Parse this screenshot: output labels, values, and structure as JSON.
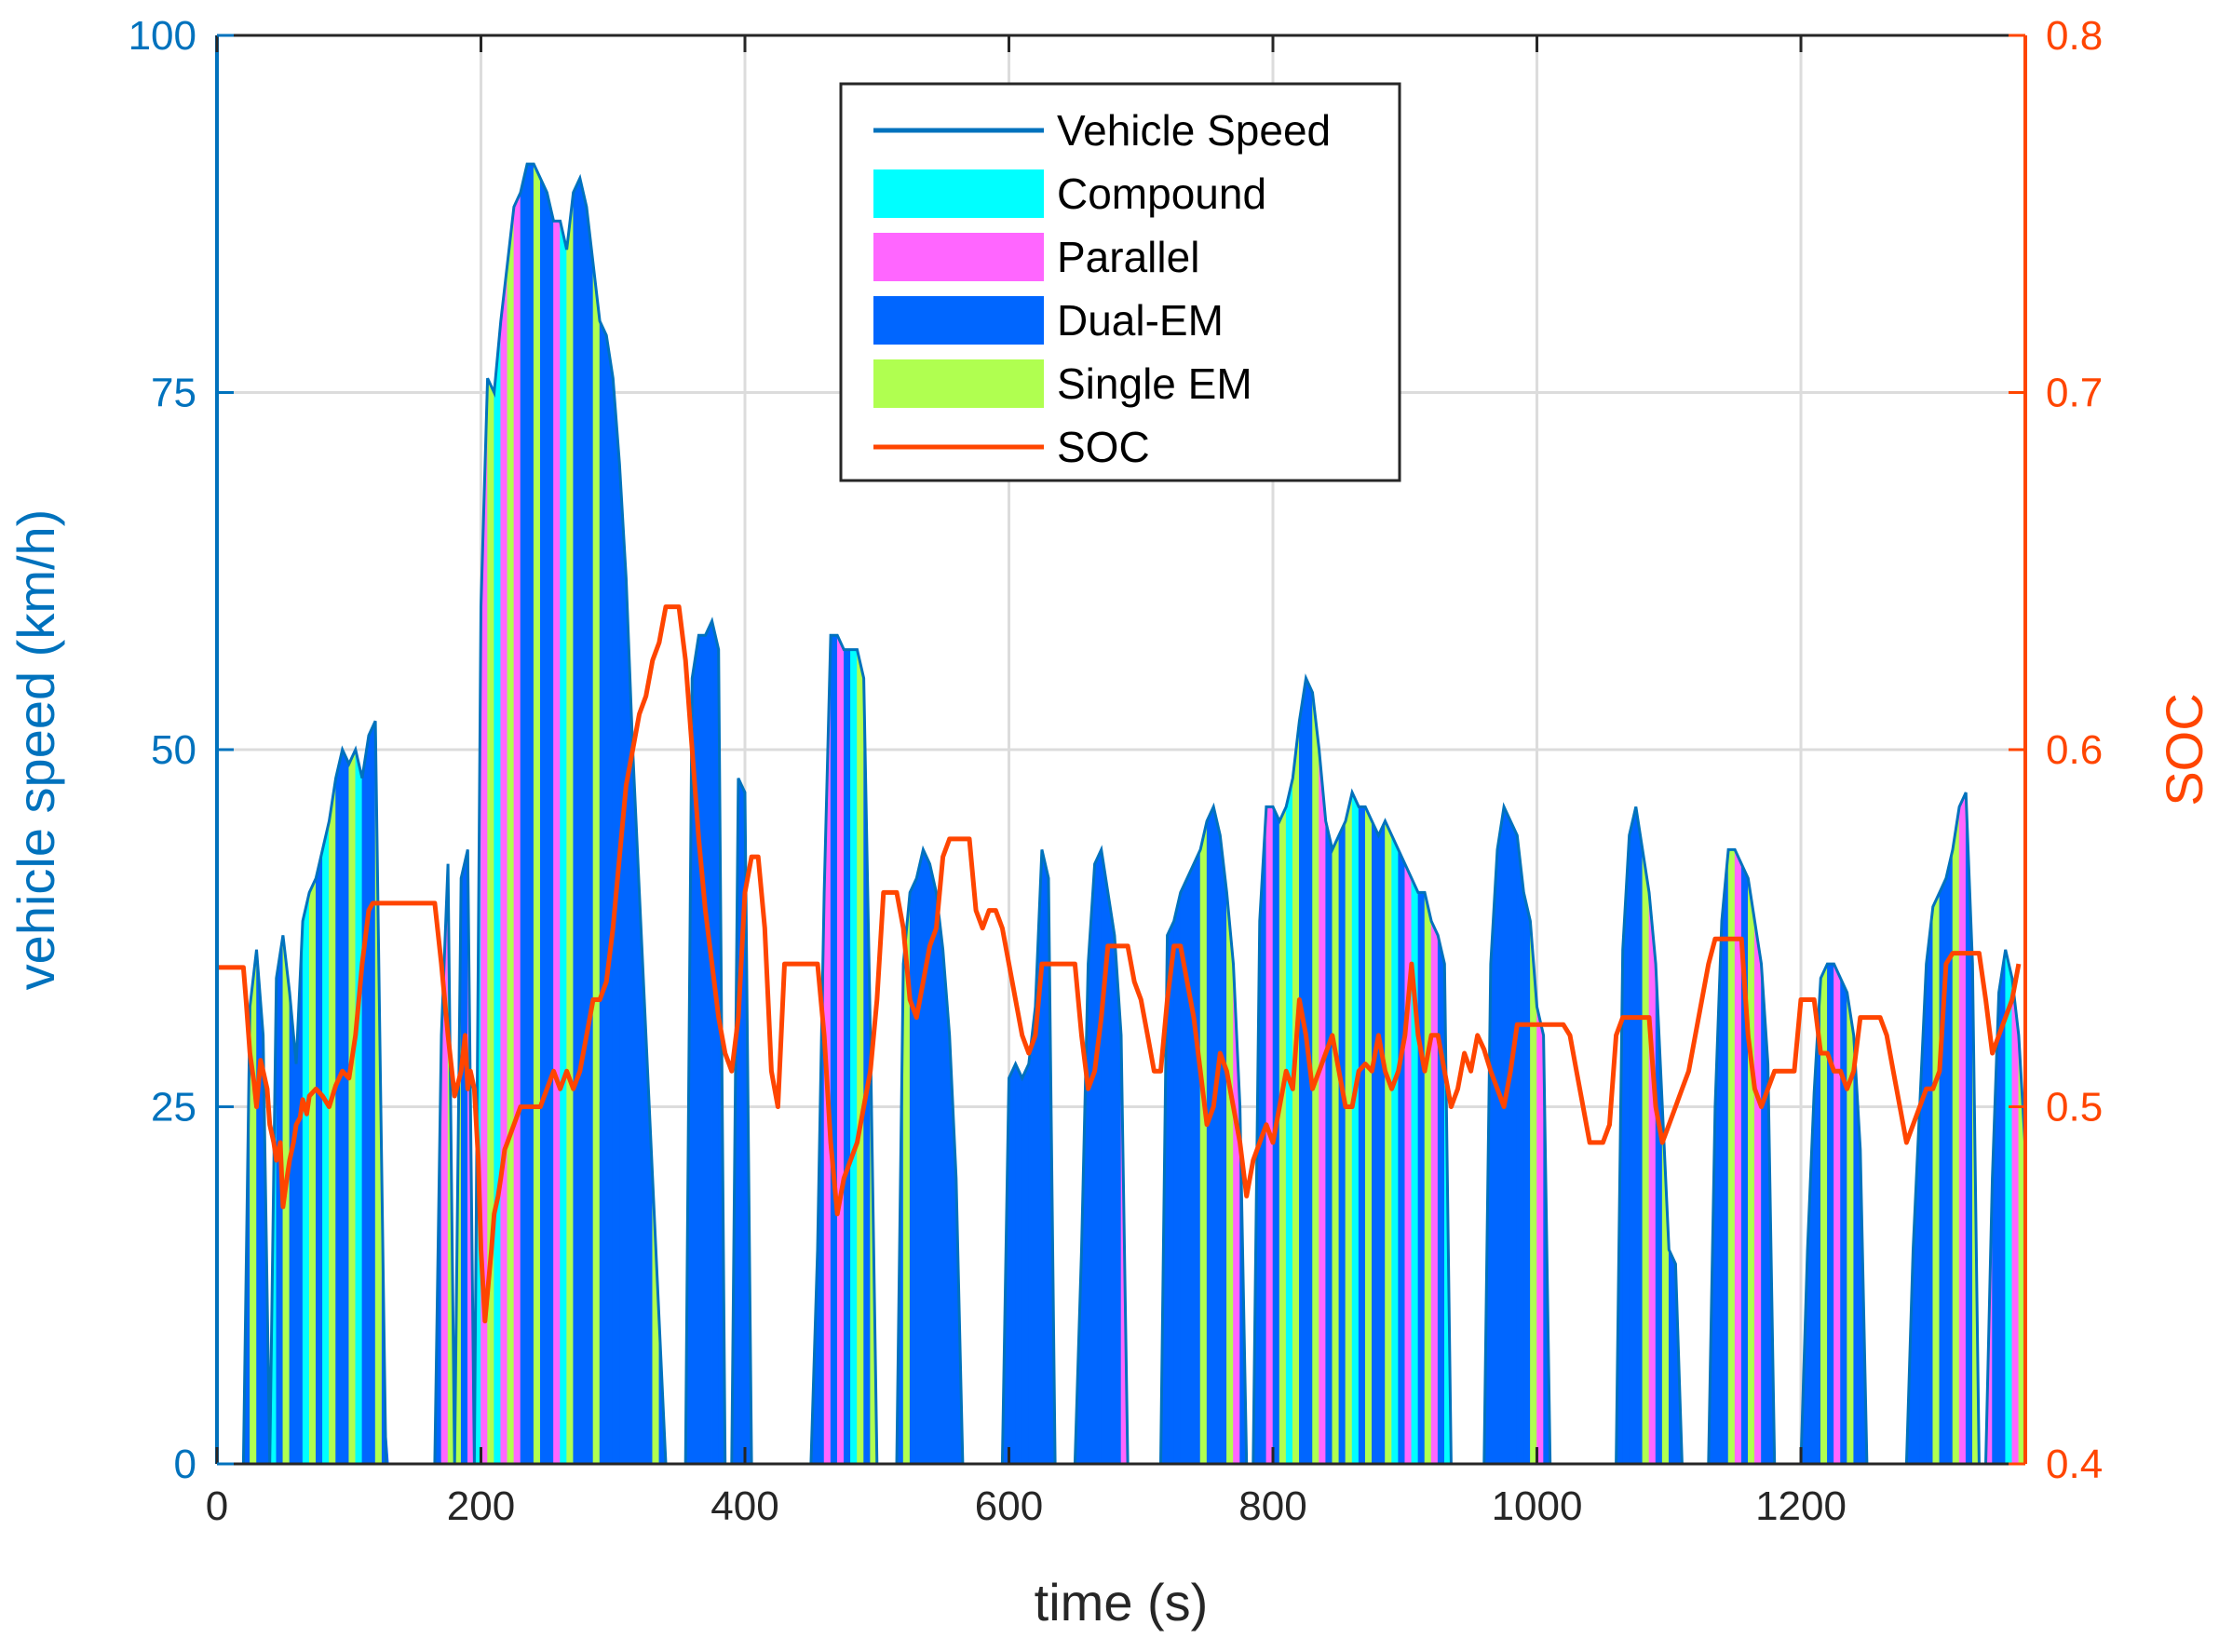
{
  "chart_data": {
    "type": "area",
    "xlabel": "time (s)",
    "ylabel_left": "vehicle speed (km/h)",
    "ylabel_right": "SOC",
    "xlim": [
      0,
      1370
    ],
    "ylim_left": [
      0,
      100
    ],
    "ylim_right": [
      0.4,
      0.8
    ],
    "x_ticks": [
      0,
      200,
      400,
      600,
      800,
      1000,
      1200
    ],
    "x_tick_labels": [
      "0",
      "200",
      "400",
      "600",
      "800",
      "1000",
      "1200"
    ],
    "y_left_ticks": [
      0,
      25,
      50,
      75,
      100
    ],
    "y_left_tick_labels": [
      "0",
      "25",
      "50",
      "75",
      "100"
    ],
    "y_right_ticks": [
      0.4,
      0.5,
      0.6,
      0.7,
      0.8
    ],
    "y_right_tick_labels": [
      "0.4",
      "0.5",
      "0.6",
      "0.7",
      "0.8"
    ],
    "grid": true,
    "legend_position": "top-center",
    "colors": {
      "vehicle_speed": "#0072BD",
      "compound": "#00FFFF",
      "parallel": "#FF66FF",
      "dual_em": "#0066FF",
      "single_em": "#B0FF50",
      "soc": "#FF4500",
      "left_axis": "#0072BD",
      "right_axis": "#FF4500"
    },
    "legend": [
      {
        "key": "vehicle_speed",
        "label": "Vehicle Speed",
        "kind": "line"
      },
      {
        "key": "compound",
        "label": "Compound",
        "kind": "patch"
      },
      {
        "key": "parallel",
        "label": "Parallel",
        "kind": "patch"
      },
      {
        "key": "dual_em",
        "label": "Dual-EM",
        "kind": "patch"
      },
      {
        "key": "single_em",
        "label": "Single EM",
        "kind": "patch"
      },
      {
        "key": "soc",
        "label": "SOC",
        "kind": "line"
      }
    ],
    "speed_series": {
      "name": "Vehicle Speed",
      "t": [
        0,
        20,
        25,
        30,
        35,
        40,
        45,
        50,
        55,
        60,
        65,
        70,
        75,
        80,
        85,
        90,
        95,
        100,
        105,
        110,
        115,
        120,
        128,
        165,
        170,
        175,
        180,
        185,
        190,
        195,
        200,
        205,
        210,
        215,
        220,
        225,
        230,
        235,
        240,
        245,
        250,
        255,
        260,
        265,
        270,
        275,
        280,
        285,
        290,
        295,
        300,
        305,
        310,
        315,
        320,
        325,
        330,
        335,
        340,
        345,
        350,
        355,
        360,
        365,
        370,
        375,
        380,
        385,
        390,
        395,
        400,
        405,
        410,
        415,
        420,
        425,
        430,
        440,
        450,
        455,
        460,
        465,
        470,
        475,
        480,
        485,
        490,
        495,
        500,
        505,
        510,
        515,
        520,
        525,
        530,
        535,
        540,
        545,
        550,
        555,
        560,
        565,
        570,
        575,
        580,
        585,
        590,
        595,
        600,
        605,
        610,
        615,
        620,
        625,
        630,
        635,
        640,
        645,
        650,
        655,
        660,
        665,
        670,
        675,
        680,
        685,
        690,
        695,
        700,
        705,
        710,
        715,
        720,
        725,
        730,
        735,
        740,
        745,
        750,
        755,
        760,
        765,
        770,
        775,
        780,
        785,
        790,
        795,
        800,
        805,
        810,
        815,
        820,
        825,
        830,
        835,
        840,
        845,
        850,
        855,
        860,
        865,
        870,
        875,
        880,
        885,
        890,
        895,
        900,
        905,
        910,
        915,
        920,
        925,
        930,
        935,
        940,
        945,
        950,
        955,
        960,
        965,
        970,
        975,
        980,
        985,
        990,
        995,
        1000,
        1005,
        1010,
        1015,
        1020,
        1025,
        1030,
        1035,
        1040,
        1045,
        1050,
        1055,
        1060,
        1065,
        1070,
        1075,
        1080,
        1085,
        1090,
        1095,
        1100,
        1105,
        1110,
        1115,
        1120,
        1125,
        1130,
        1135,
        1140,
        1145,
        1150,
        1155,
        1160,
        1165,
        1170,
        1175,
        1180,
        1185,
        1190,
        1195,
        1200,
        1205,
        1210,
        1215,
        1220,
        1225,
        1230,
        1235,
        1240,
        1245,
        1250,
        1255,
        1260,
        1265,
        1270,
        1275,
        1280,
        1285,
        1290,
        1295,
        1300,
        1305,
        1310,
        1315,
        1320,
        1325,
        1330,
        1335,
        1340,
        1345,
        1350,
        1355,
        1360,
        1365,
        1370
      ],
      "v": [
        0,
        0,
        32,
        36,
        30,
        0,
        34,
        37,
        33,
        28,
        38,
        40,
        41,
        43,
        45,
        48,
        50,
        49,
        50,
        48,
        51,
        52,
        0,
        0,
        30,
        42,
        0,
        41,
        43,
        0,
        60,
        76,
        75,
        80,
        84,
        88,
        89,
        91,
        91,
        90,
        89,
        87,
        87,
        85,
        89,
        90,
        88,
        84,
        80,
        79,
        76,
        70,
        62,
        50,
        40,
        30,
        20,
        10,
        0,
        0,
        0,
        0,
        55,
        58,
        58,
        59,
        57,
        0,
        0,
        48,
        47,
        0,
        0,
        0,
        0,
        0,
        0,
        0,
        0,
        15,
        40,
        58,
        58,
        57,
        57,
        57,
        55,
        30,
        0,
        0,
        0,
        0,
        35,
        40,
        41,
        43,
        42,
        40,
        36,
        30,
        20,
        0,
        0,
        0,
        0,
        0,
        0,
        0,
        27,
        28,
        27,
        28,
        32,
        43,
        41,
        0,
        0,
        0,
        0,
        15,
        35,
        42,
        43,
        40,
        37,
        30,
        0,
        0,
        0,
        0,
        0,
        0,
        37,
        38,
        40,
        41,
        42,
        43,
        45,
        46,
        44,
        40,
        35,
        25,
        0,
        0,
        38,
        46,
        46,
        45,
        46,
        48,
        52,
        55,
        54,
        50,
        45,
        43,
        44,
        45,
        47,
        46,
        46,
        45,
        44,
        45,
        44,
        43,
        42,
        41,
        40,
        40,
        38,
        37,
        35,
        0,
        0,
        0,
        0,
        0,
        0,
        35,
        43,
        46,
        45,
        44,
        40,
        38,
        32,
        30,
        0,
        0,
        0,
        0,
        0,
        0,
        0,
        0,
        0,
        0,
        0,
        36,
        44,
        46,
        43,
        40,
        35,
        25,
        15,
        14,
        0,
        0,
        0,
        0,
        0,
        25,
        38,
        43,
        43,
        42,
        41,
        38,
        35,
        28,
        0,
        0,
        0,
        0,
        0,
        15,
        26,
        34,
        35,
        35,
        34,
        33,
        30,
        22,
        0,
        0,
        0,
        0,
        0,
        0,
        0,
        15,
        25,
        35,
        39,
        40,
        41,
        43,
        46,
        47,
        35,
        0,
        0,
        20,
        33,
        36,
        34,
        30,
        22
      ]
    },
    "mode_blocks": {
      "order": [
        "compound",
        "parallel",
        "dual_em",
        "single_em"
      ],
      "step_s": 5,
      "sequence": "DDCDDSDDCDSDDCSDCSDDSCDDSDDDDDPSDDPSSDPCPSCPSPDDSDDPCSDDDSDDDDDDDDSDDDDDDDDDDDDDDDDDDSDDDDDDPDPDCSDSDSDDSDDDDDDDDPPPSDDDDDDDDDDPDDDDDDDDDPDDDDDDDDDDDSDDDSPDSDDPDSCSDDSPDSDSCDSDDSCDPCDSPDCSSDDSDDDDDDDSPDSPSDDDDDDDDDDDSPDSDDDDDDDDDSPDSPDDDDDDDDDSDPDSDDDDDDDDDDDDSDDSPDSDPDDCPSDDDPDS"
    },
    "soc_series": {
      "name": "SOC",
      "t": [
        0,
        20,
        22,
        25,
        28,
        30,
        33,
        35,
        38,
        40,
        43,
        45,
        48,
        50,
        53,
        55,
        58,
        60,
        63,
        65,
        68,
        70,
        75,
        80,
        85,
        90,
        95,
        100,
        105,
        110,
        115,
        118,
        120,
        125,
        130,
        165,
        170,
        175,
        180,
        185,
        188,
        190,
        192,
        195,
        198,
        200,
        203,
        205,
        208,
        210,
        213,
        215,
        218,
        220,
        225,
        230,
        235,
        240,
        245,
        250,
        255,
        260,
        265,
        270,
        275,
        280,
        285,
        290,
        295,
        300,
        305,
        310,
        315,
        320,
        325,
        330,
        335,
        340,
        345,
        350,
        355,
        360,
        365,
        370,
        375,
        380,
        385,
        390,
        395,
        400,
        405,
        410,
        415,
        420,
        425,
        430,
        435,
        440,
        445,
        450,
        455,
        460,
        465,
        470,
        475,
        480,
        485,
        490,
        495,
        500,
        505,
        510,
        515,
        520,
        525,
        530,
        535,
        540,
        545,
        550,
        555,
        560,
        565,
        570,
        575,
        580,
        585,
        590,
        595,
        600,
        605,
        610,
        615,
        620,
        625,
        630,
        635,
        640,
        645,
        650,
        655,
        660,
        665,
        670,
        675,
        680,
        685,
        690,
        695,
        700,
        705,
        710,
        715,
        720,
        725,
        730,
        735,
        740,
        745,
        750,
        755,
        760,
        765,
        770,
        775,
        780,
        785,
        790,
        795,
        800,
        805,
        810,
        815,
        820,
        825,
        830,
        835,
        840,
        845,
        850,
        855,
        860,
        865,
        870,
        875,
        880,
        885,
        890,
        895,
        900,
        905,
        910,
        915,
        920,
        925,
        930,
        935,
        940,
        945,
        950,
        955,
        960,
        965,
        970,
        975,
        980,
        985,
        990,
        995,
        1000,
        1005,
        1010,
        1015,
        1020,
        1025,
        1030,
        1035,
        1040,
        1045,
        1050,
        1055,
        1060,
        1065,
        1070,
        1075,
        1080,
        1085,
        1090,
        1095,
        1100,
        1105,
        1110,
        1115,
        1120,
        1125,
        1130,
        1135,
        1140,
        1145,
        1150,
        1155,
        1160,
        1165,
        1170,
        1175,
        1180,
        1185,
        1190,
        1195,
        1200,
        1205,
        1210,
        1215,
        1220,
        1225,
        1230,
        1235,
        1240,
        1245,
        1250,
        1255,
        1260,
        1265,
        1270,
        1275,
        1280,
        1285,
        1290,
        1295,
        1300,
        1305,
        1310,
        1315,
        1320,
        1325,
        1330,
        1335,
        1340,
        1345,
        1350,
        1355,
        1360,
        1365,
        1370
      ],
      "soc": [
        0.539,
        0.539,
        0.53,
        0.515,
        0.507,
        0.5,
        0.513,
        0.51,
        0.505,
        0.495,
        0.49,
        0.485,
        0.49,
        0.472,
        0.48,
        0.485,
        0.49,
        0.495,
        0.497,
        0.502,
        0.498,
        0.503,
        0.505,
        0.503,
        0.5,
        0.506,
        0.51,
        0.508,
        0.52,
        0.54,
        0.555,
        0.557,
        0.557,
        0.557,
        0.557,
        0.557,
        0.54,
        0.52,
        0.503,
        0.51,
        0.52,
        0.505,
        0.51,
        0.505,
        0.485,
        0.46,
        0.44,
        0.448,
        0.46,
        0.47,
        0.475,
        0.48,
        0.488,
        0.49,
        0.495,
        0.5,
        0.5,
        0.5,
        0.5,
        0.505,
        0.51,
        0.505,
        0.51,
        0.505,
        0.51,
        0.52,
        0.53,
        0.53,
        0.535,
        0.55,
        0.57,
        0.59,
        0.6,
        0.61,
        0.615,
        0.625,
        0.63,
        0.64,
        0.64,
        0.64,
        0.625,
        0.6,
        0.575,
        0.555,
        0.54,
        0.525,
        0.515,
        0.51,
        0.525,
        0.56,
        0.57,
        0.57,
        0.55,
        0.51,
        0.5,
        0.54,
        0.54,
        0.54,
        0.54,
        0.54,
        0.54,
        0.52,
        0.49,
        0.47,
        0.48,
        0.485,
        0.49,
        0.5,
        0.51,
        0.53,
        0.56,
        0.56,
        0.56,
        0.55,
        0.53,
        0.525,
        0.535,
        0.545,
        0.55,
        0.57,
        0.575,
        0.575,
        0.575,
        0.575,
        0.555,
        0.55,
        0.555,
        0.555,
        0.55,
        0.54,
        0.53,
        0.52,
        0.515,
        0.52,
        0.54,
        0.54,
        0.54,
        0.54,
        0.54,
        0.54,
        0.52,
        0.505,
        0.51,
        0.525,
        0.545,
        0.545,
        0.545,
        0.545,
        0.535,
        0.53,
        0.52,
        0.51,
        0.51,
        0.53,
        0.545,
        0.545,
        0.535,
        0.525,
        0.51,
        0.495,
        0.5,
        0.515,
        0.51,
        0.5,
        0.49,
        0.475,
        0.485,
        0.49,
        0.495,
        0.49,
        0.5,
        0.51,
        0.505,
        0.53,
        0.52,
        0.505,
        0.51,
        0.515,
        0.52,
        0.51,
        0.5,
        0.5,
        0.51,
        0.512,
        0.51,
        0.52,
        0.51,
        0.505,
        0.51,
        0.52,
        0.54,
        0.52,
        0.51,
        0.52,
        0.52,
        0.51,
        0.5,
        0.505,
        0.515,
        0.51,
        0.52,
        0.516,
        0.51,
        0.505,
        0.5,
        0.51,
        0.523,
        0.523,
        0.523,
        0.523,
        0.523,
        0.523,
        0.523,
        0.523,
        0.52,
        0.51,
        0.5,
        0.49,
        0.49,
        0.49,
        0.495,
        0.52,
        0.525,
        0.525,
        0.525,
        0.525,
        0.525,
        0.5,
        0.49,
        0.495,
        0.5,
        0.505,
        0.51,
        0.52,
        0.53,
        0.54,
        0.547,
        0.547,
        0.547,
        0.547,
        0.547,
        0.52,
        0.505,
        0.5,
        0.505,
        0.51,
        0.51,
        0.51,
        0.51,
        0.53,
        0.53,
        0.53,
        0.515,
        0.515,
        0.51,
        0.51,
        0.505,
        0.51,
        0.525,
        0.525,
        0.525,
        0.525,
        0.52,
        0.51,
        0.5,
        0.49,
        0.495,
        0.5,
        0.505,
        0.505,
        0.51,
        0.54,
        0.543,
        0.543,
        0.543,
        0.543,
        0.543,
        0.53,
        0.515,
        0.52,
        0.525,
        0.53,
        0.54
      ]
    }
  }
}
